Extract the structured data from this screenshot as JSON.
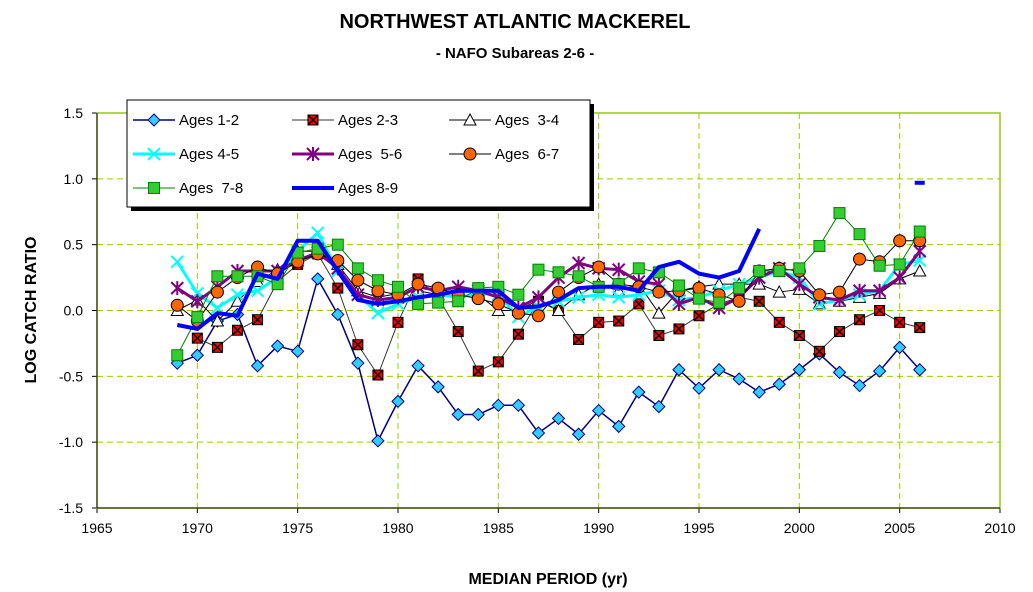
{
  "chart_data": {
    "type": "line",
    "title": "NORTHWEST ATLANTIC MACKEREL",
    "subtitle": "- NAFO Subareas 2-6 -",
    "x_label": "MEDIAN PERIOD (yr)",
    "y_label": "LOG CATCH RATIO",
    "x": [
      1969,
      1970,
      1971,
      1972,
      1973,
      1974,
      1975,
      1976,
      1977,
      1978,
      1979,
      1980,
      1981,
      1982,
      1983,
      1984,
      1985,
      1986,
      1987,
      1988,
      1989,
      1990,
      1991,
      1992,
      1993,
      1994,
      1995,
      1996,
      1997,
      1998,
      1999,
      2000,
      2001,
      2002,
      2003,
      2004,
      2005,
      2006
    ],
    "xlim": [
      1965,
      2010
    ],
    "xticks": [
      1965,
      1970,
      1975,
      1980,
      1985,
      1990,
      1995,
      2000,
      2005,
      2010
    ],
    "ylim": [
      -1.5,
      1.5
    ],
    "yticks": [
      1.5,
      {
        "value": 1,
        "label": "1.0"
      },
      0.5,
      {
        "value": 0,
        "label": "0.0"
      },
      -0.5,
      {
        "value": -1,
        "label": "-1.0"
      },
      -1.5
    ],
    "grid": true,
    "legend": "top-left",
    "series": [
      {
        "name": "Ages 1-2",
        "color": "#000080",
        "marker": "diamond",
        "marker_color": "#33ccff",
        "values": [
          -0.4,
          -0.34,
          -0.08,
          -0.03,
          -0.42,
          -0.27,
          -0.31,
          0.24,
          -0.03,
          -0.4,
          -0.99,
          -0.69,
          -0.42,
          -0.58,
          -0.79,
          -0.79,
          -0.72,
          -0.72,
          -0.93,
          -0.82,
          -0.94,
          -0.76,
          -0.88,
          -0.62,
          -0.73,
          -0.45,
          -0.59,
          -0.45,
          -0.52,
          -0.62,
          -0.56,
          -0.45,
          -0.33,
          -0.47,
          -0.57,
          -0.46,
          -0.28,
          -0.45
        ]
      },
      {
        "name": "Ages 2-3",
        "color": "#333333",
        "marker": "xsquare",
        "marker_color": "#ff0000",
        "values": [
          null,
          -0.21,
          -0.28,
          -0.15,
          -0.07,
          0.22,
          0.35,
          0.43,
          0.17,
          -0.26,
          -0.49,
          -0.09,
          0.24,
          0.1,
          -0.16,
          -0.46,
          -0.39,
          -0.18,
          0.07,
          0.0,
          -0.22,
          -0.09,
          -0.08,
          0.05,
          -0.19,
          -0.14,
          -0.04,
          0.05,
          0.1,
          0.07,
          -0.09,
          -0.19,
          -0.31,
          -0.16,
          -0.07,
          0.0,
          -0.09,
          -0.13
        ]
      },
      {
        "name": "Ages  3-4",
        "color": "#000000",
        "marker": "triangle",
        "marker_color": "#ffffff",
        "values": [
          0.0,
          0.08,
          -0.08,
          0.07,
          0.22,
          0.31,
          0.45,
          0.45,
          0.35,
          0.15,
          0.1,
          0.13,
          0.15,
          0.12,
          0.1,
          0.12,
          0.0,
          0.0,
          0.08,
          0.0,
          0.12,
          0.2,
          0.15,
          0.2,
          -0.02,
          0.15,
          0.18,
          0.2,
          0.2,
          0.2,
          0.14,
          0.16,
          0.05,
          0.07,
          0.1,
          0.13,
          0.24,
          0.3
        ]
      },
      {
        "name": "Ages 4-5",
        "color": "#00ffff",
        "marker": "cross",
        "marker_color": "#00ffff",
        "values": [
          0.37,
          0.13,
          0.02,
          0.12,
          0.15,
          0.25,
          0.45,
          0.59,
          0.3,
          0.12,
          -0.02,
          0.05,
          0.1,
          0.12,
          0.1,
          0.13,
          0.12,
          -0.05,
          0.03,
          0.07,
          0.1,
          0.12,
          0.1,
          0.12,
          0.15,
          0.08,
          0.1,
          0.15,
          0.2,
          0.25,
          0.3,
          0.25,
          0.05,
          0.08,
          0.12,
          0.15,
          0.35,
          0.38
        ]
      },
      {
        "name": "Ages  5-6",
        "color": "#800080",
        "marker": "star",
        "marker_color": "#800080",
        "values": [
          0.17,
          0.07,
          0.18,
          0.3,
          0.3,
          0.3,
          0.38,
          0.44,
          0.32,
          0.12,
          0.08,
          0.1,
          0.18,
          0.15,
          0.18,
          0.15,
          0.1,
          0.02,
          0.1,
          0.25,
          0.36,
          0.32,
          0.31,
          0.22,
          0.2,
          0.05,
          0.1,
          0.02,
          0.1,
          0.25,
          0.32,
          0.2,
          0.1,
          0.08,
          0.15,
          0.15,
          0.25,
          0.45
        ]
      },
      {
        "name": "Ages  6-7",
        "color": "#000000",
        "marker": "circle",
        "marker_color": "#ff6600",
        "values": [
          0.04,
          -0.08,
          0.14,
          0.25,
          0.33,
          0.28,
          0.37,
          0.43,
          0.38,
          0.23,
          0.15,
          0.12,
          0.2,
          0.17,
          0.12,
          0.09,
          0.05,
          -0.02,
          -0.04,
          0.14,
          0.25,
          0.33,
          0.2,
          0.18,
          0.14,
          0.15,
          0.17,
          0.12,
          0.07,
          0.3,
          0.32,
          0.3,
          0.12,
          0.14,
          0.39,
          0.37,
          0.53,
          0.53
        ]
      },
      {
        "name": "Ages  7-8",
        "color": "#008000",
        "marker": "square",
        "marker_color": "#33cc33",
        "values": [
          -0.34,
          -0.05,
          0.26,
          0.26,
          0.26,
          0.2,
          0.44,
          0.47,
          0.5,
          0.32,
          0.23,
          0.18,
          0.05,
          0.06,
          0.07,
          0.17,
          0.18,
          0.12,
          0.31,
          0.29,
          0.26,
          0.18,
          0.2,
          0.32,
          0.29,
          0.19,
          0.09,
          0.06,
          0.17,
          0.3,
          0.3,
          0.32,
          0.49,
          0.74,
          0.58,
          0.34,
          0.35,
          0.6
        ]
      },
      {
        "name": "Ages 8-9",
        "color": "#0000ff",
        "marker": "none",
        "marker_color": "#0000ff",
        "values": [
          -0.11,
          -0.14,
          -0.02,
          -0.04,
          0.28,
          0.24,
          0.53,
          0.53,
          0.3,
          0.08,
          0.05,
          0.07,
          0.1,
          0.12,
          0.15,
          0.15,
          0.15,
          0.02,
          0.03,
          0.08,
          0.17,
          0.18,
          0.18,
          0.15,
          0.33,
          0.37,
          0.28,
          0.25,
          0.3,
          0.62,
          null,
          null,
          null,
          null,
          null,
          null,
          null,
          0.97
        ]
      }
    ]
  }
}
